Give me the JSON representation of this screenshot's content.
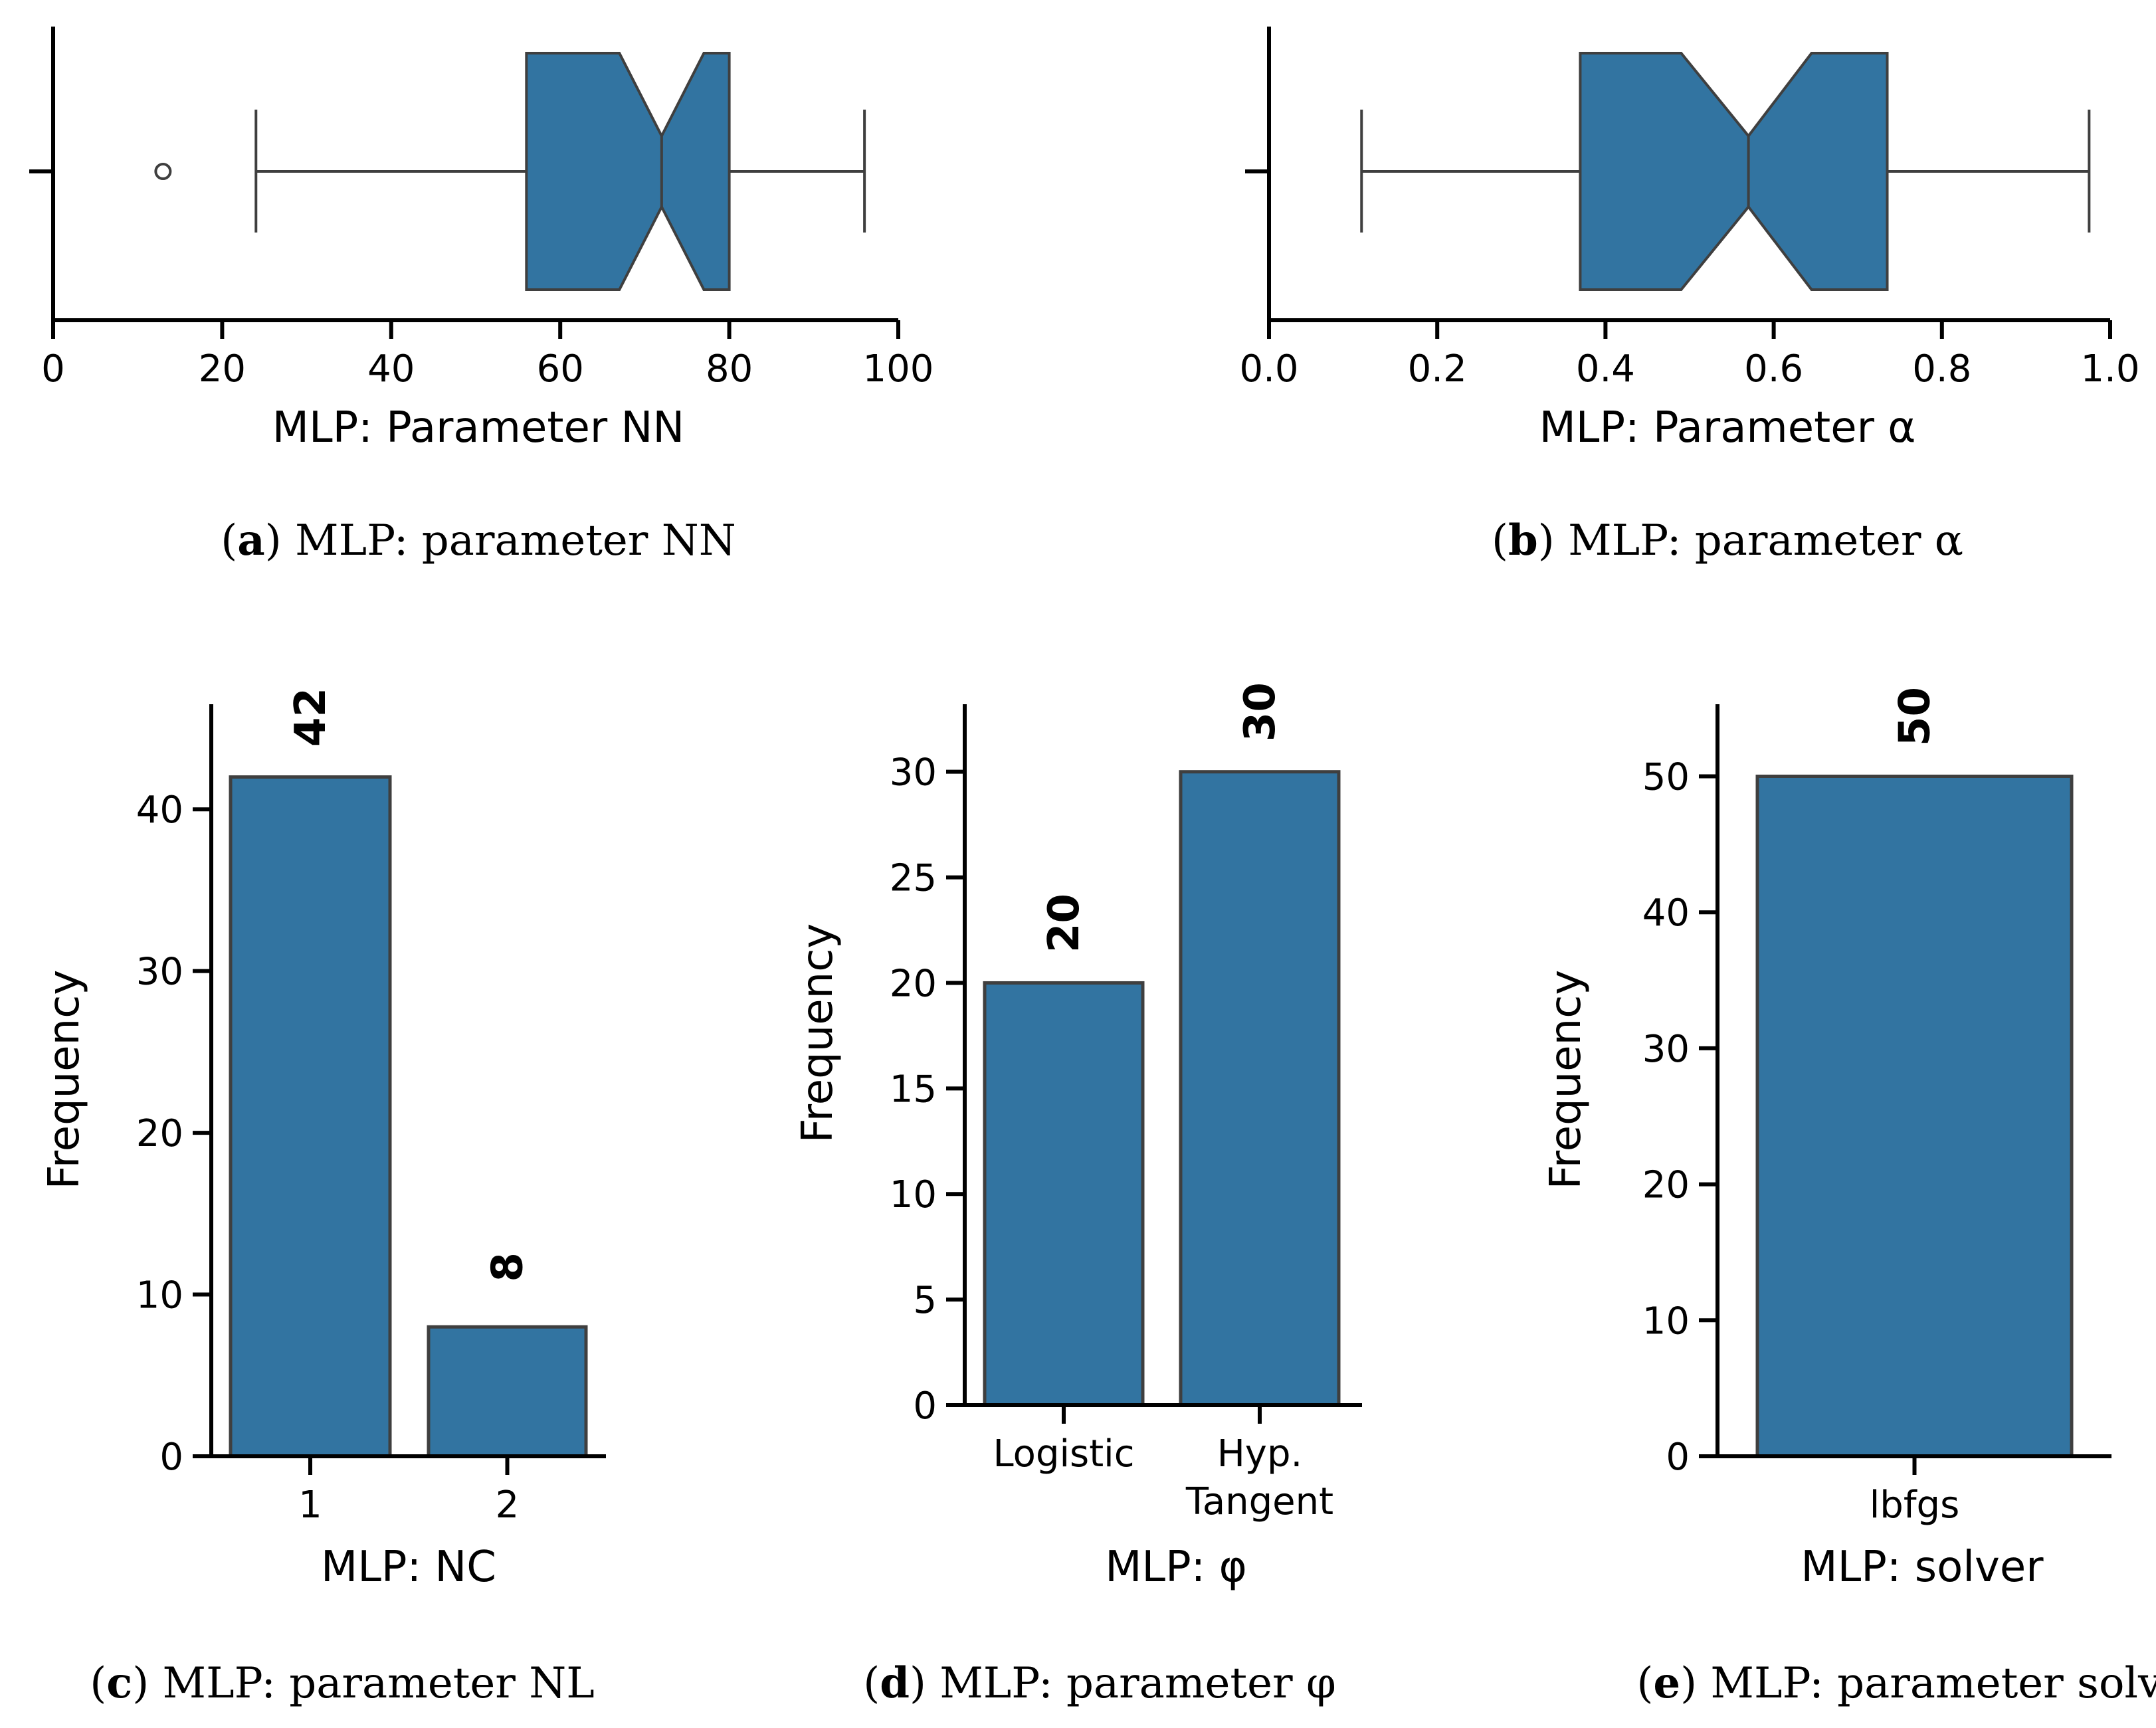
{
  "colors": {
    "fill": "#3274a1",
    "edge": "#3f3f3f",
    "axis": "#000000"
  },
  "chart_data": [
    {
      "id": "a",
      "type": "box",
      "notched": true,
      "xlabel": "MLP: Parameter NN",
      "xlim": [
        0,
        100
      ],
      "xticks": [
        "0",
        "20",
        "40",
        "60",
        "80",
        "100"
      ],
      "stats": {
        "whisker_low": 24,
        "q1": 56,
        "median": 72,
        "q3": 80,
        "whisker_high": 96,
        "notch_low": 67,
        "notch_high": 77
      },
      "outliers": [
        13
      ],
      "caption": {
        "letter": "a",
        "text": ") MLP: parameter NN"
      }
    },
    {
      "id": "b",
      "type": "box",
      "notched": true,
      "xlabel": "MLP: Parameter α",
      "xlim": [
        0,
        1.0
      ],
      "xticks": [
        "0.0",
        "0.2",
        "0.4",
        "0.6",
        "0.8",
        "1.0"
      ],
      "stats": {
        "whisker_low": 0.11,
        "q1": 0.37,
        "median": 0.57,
        "q3": 0.735,
        "whisker_high": 0.975,
        "notch_low": 0.49,
        "notch_high": 0.645
      },
      "outliers": [],
      "caption": {
        "letter": "b",
        "text": ") MLP: parameter α"
      }
    },
    {
      "id": "c",
      "type": "bar",
      "categories": [
        "1",
        "2"
      ],
      "values": [
        42,
        8
      ],
      "value_labels": [
        "42",
        "8"
      ],
      "xlabel": "MLP: NC",
      "ylabel": "Frequency",
      "ylim": [
        0,
        46.5
      ],
      "yticks": [
        "0",
        "10",
        "20",
        "30",
        "40"
      ],
      "caption": {
        "letter": "c",
        "text": ") MLP: parameter NL"
      }
    },
    {
      "id": "d",
      "type": "bar",
      "categories": [
        "Logistic",
        "Hyp. Tangent"
      ],
      "values": [
        20,
        30
      ],
      "value_labels": [
        "20",
        "30"
      ],
      "xlabel": "MLP: φ",
      "ylabel": "Frequency",
      "ylim": [
        0,
        33.2
      ],
      "yticks": [
        "0",
        "5",
        "10",
        "15",
        "20",
        "25",
        "30"
      ],
      "caption": {
        "letter": "d",
        "text": ") MLP: parameter φ"
      }
    },
    {
      "id": "e",
      "type": "bar",
      "categories": [
        "lbfgs"
      ],
      "values": [
        50
      ],
      "value_labels": [
        "50"
      ],
      "xlabel": "MLP: solver",
      "ylabel": "Frequency",
      "ylim": [
        0,
        55.3
      ],
      "yticks": [
        "0",
        "10",
        "20",
        "30",
        "40",
        "50"
      ],
      "caption": {
        "letter": "e",
        "text": ") MLP: parameter solver"
      }
    }
  ]
}
